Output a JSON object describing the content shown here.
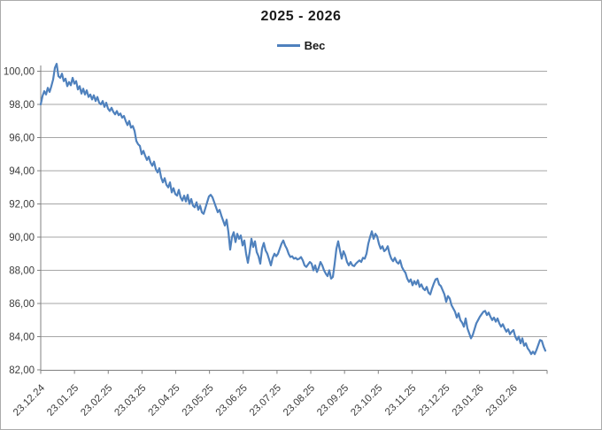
{
  "chart_data": {
    "type": "line",
    "title": "2025 - 2026",
    "legend_label": "Вес",
    "legend_position": "top",
    "grid_on": true,
    "grid_color": "#a6a6a6",
    "axis_color": "#808080",
    "label_color": "#3d3d3d",
    "background_color": "#ffffff",
    "border_color": "#ababab",
    "y_axis": {
      "min": 82,
      "max": 100,
      "major_unit": 2,
      "tick_labels": [
        "100,00",
        "98,00",
        "96,00",
        "94,00",
        "92,00",
        "90,00",
        "88,00",
        "86,00",
        "84,00",
        "82,00"
      ]
    },
    "x_axis": {
      "tick_labels": [
        "23.12.24",
        "23.01.25",
        "23.02.25",
        "23.03.25",
        "23.04.25",
        "23.05.25",
        "23.06.25",
        "23.07.25",
        "23.08.25",
        "23.09.25",
        "23.10.25",
        "23.11.25",
        "23.12.25",
        "23.01.26",
        "23.02.26"
      ],
      "label_rotation_deg": 45
    },
    "series": [
      {
        "name": "Вес",
        "color": "#4f81bd",
        "values": [
          98.0,
          98.5,
          98.8,
          98.6,
          99.0,
          98.75,
          99.1,
          99.5,
          100.2,
          100.45,
          99.7,
          99.6,
          99.85,
          99.4,
          99.55,
          99.1,
          99.35,
          99.15,
          99.6,
          99.25,
          99.4,
          98.9,
          99.1,
          98.65,
          98.95,
          98.6,
          98.85,
          98.45,
          98.6,
          98.3,
          98.55,
          98.2,
          98.45,
          98.1,
          98.0,
          98.2,
          97.85,
          98.1,
          97.75,
          97.6,
          97.8,
          97.55,
          97.4,
          97.6,
          97.35,
          97.45,
          97.2,
          97.3,
          97.0,
          96.75,
          97.0,
          96.6,
          96.7,
          96.4,
          95.8,
          95.6,
          95.5,
          95.0,
          95.2,
          94.9,
          94.65,
          94.85,
          94.5,
          94.3,
          94.55,
          94.1,
          93.9,
          94.15,
          93.6,
          93.3,
          93.55,
          93.15,
          93.0,
          93.3,
          92.7,
          92.95,
          92.6,
          92.5,
          92.85,
          92.4,
          92.2,
          92.5,
          92.15,
          92.55,
          92.0,
          92.3,
          91.9,
          91.8,
          92.1,
          91.65,
          91.9,
          91.5,
          91.4,
          91.75,
          92.1,
          92.45,
          92.55,
          92.4,
          92.1,
          91.8,
          91.5,
          91.65,
          91.3,
          91.0,
          90.7,
          91.05,
          90.3,
          89.25,
          90.0,
          90.3,
          89.7,
          90.2,
          89.9,
          90.1,
          89.5,
          89.8,
          89.0,
          88.45,
          89.1,
          89.9,
          89.4,
          89.75,
          89.1,
          88.85,
          88.4,
          89.3,
          89.65,
          89.2,
          89.0,
          88.65,
          88.3,
          88.75,
          89.0,
          88.85,
          89.0,
          89.3,
          89.6,
          89.8,
          89.5,
          89.3,
          89.0,
          88.8,
          88.85,
          88.7,
          88.75,
          88.65,
          88.7,
          88.8,
          88.6,
          88.3,
          88.2,
          88.35,
          88.5,
          88.4,
          88.0,
          88.3,
          87.9,
          88.15,
          88.5,
          88.3,
          88.0,
          87.8,
          87.65,
          88.0,
          87.5,
          87.6,
          88.4,
          89.3,
          89.75,
          89.2,
          88.7,
          89.15,
          88.9,
          88.5,
          88.3,
          88.5,
          88.3,
          88.25,
          88.4,
          88.5,
          88.6,
          88.5,
          88.75,
          88.7,
          89.0,
          89.6,
          90.0,
          90.35,
          89.9,
          90.2,
          90.05,
          89.6,
          89.3,
          89.45,
          89.15,
          89.25,
          89.45,
          89.0,
          88.7,
          88.55,
          88.75,
          88.5,
          88.4,
          88.6,
          88.2,
          88.0,
          87.85,
          87.5,
          87.3,
          87.45,
          87.1,
          87.35,
          87.15,
          87.4,
          87.0,
          87.15,
          86.9,
          86.8,
          87.0,
          86.65,
          86.55,
          86.9,
          87.2,
          87.45,
          87.5,
          87.15,
          87.05,
          86.8,
          86.55,
          86.1,
          86.45,
          86.3,
          85.9,
          85.7,
          85.5,
          85.15,
          85.4,
          85.0,
          84.85,
          84.6,
          85.1,
          84.5,
          84.2,
          83.9,
          84.1,
          84.45,
          84.8,
          85.0,
          85.2,
          85.35,
          85.5,
          85.55,
          85.3,
          85.45,
          85.2,
          85.0,
          85.15,
          84.9,
          85.1,
          84.8,
          84.6,
          84.75,
          84.5,
          84.3,
          84.45,
          84.15,
          84.3,
          84.4,
          84.0,
          83.8,
          84.0,
          83.6,
          83.9,
          83.45,
          83.6,
          83.3,
          83.15,
          82.95,
          83.1,
          82.95,
          83.2,
          83.5,
          83.8,
          83.75,
          83.4,
          83.15
        ]
      }
    ]
  }
}
